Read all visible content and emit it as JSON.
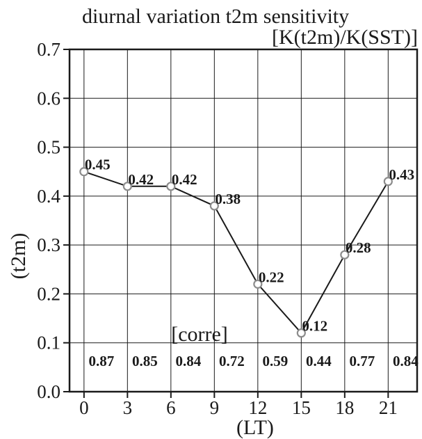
{
  "chart_data": {
    "type": "line",
    "title": "diurnal variation t2m sensitivity",
    "subtitle": "[K(t2m)/K(SST)]",
    "xlabel": "(LT)",
    "ylabel": "(t2m)",
    "x": [
      0,
      3,
      6,
      9,
      12,
      15,
      18,
      21
    ],
    "x_tick_labels": [
      "0",
      "3",
      "6",
      "9",
      "12",
      "15",
      "18",
      "21"
    ],
    "y_tick_labels": [
      "0.0",
      "0.1",
      "0.2",
      "0.3",
      "0.4",
      "0.5",
      "0.6",
      "0.7"
    ],
    "ylim": [
      0,
      0.7
    ],
    "xlim": [
      -1,
      23
    ],
    "grid": true,
    "series": [
      {
        "values": [
          0.45,
          0.42,
          0.42,
          0.38,
          0.22,
          0.12,
          0.28,
          0.43
        ],
        "value_labels": [
          "0.45",
          "0.42",
          "0.42",
          "0.38",
          "0.22",
          "0.12",
          "0.28",
          "0.43"
        ]
      }
    ],
    "correlation": {
      "label": "[corre]",
      "values": [
        "0.87",
        "0.85",
        "0.84",
        "0.72",
        "0.59",
        "0.44",
        "0.77",
        "0.84"
      ]
    },
    "colors": {
      "line": "#1a1a1a",
      "marker": "#8c8c8c",
      "grid": "#1a1a1a"
    }
  }
}
